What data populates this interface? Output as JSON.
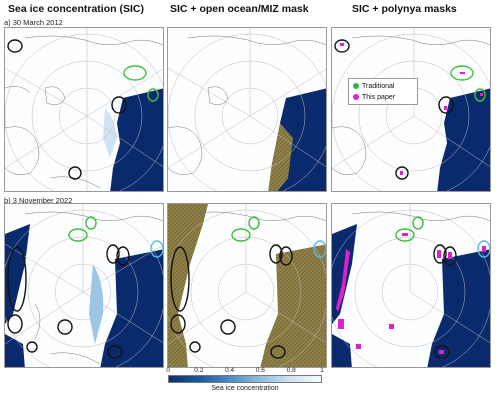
{
  "columns": [
    "Sea ice concentration (SIC)",
    "SIC + open ocean/MIZ mask",
    "SIC + polynya masks"
  ],
  "rows": [
    {
      "label": "a) 30 March 2012"
    },
    {
      "label": "b) 3 November 2022"
    }
  ],
  "legend": {
    "traditional": "Traditional",
    "this_paper": "This paper",
    "traditional_color": "#2fb34a",
    "this_paper_color": "#e020d0"
  },
  "colorbar": {
    "label": "Sea ice concentration",
    "ticks": [
      "0",
      "0.2",
      "0.4",
      "0.6",
      "0.8",
      "1"
    ],
    "colors": [
      "#08306b",
      "#f7fbff"
    ]
  },
  "colors": {
    "sea_ice_dark": "#0a2a6e",
    "land_outline": "#777777",
    "mask_olive": "#8e7f47",
    "circle_black": "#111111",
    "circle_green": "#3fbf3f",
    "circle_cyan": "#58b9e8"
  }
}
